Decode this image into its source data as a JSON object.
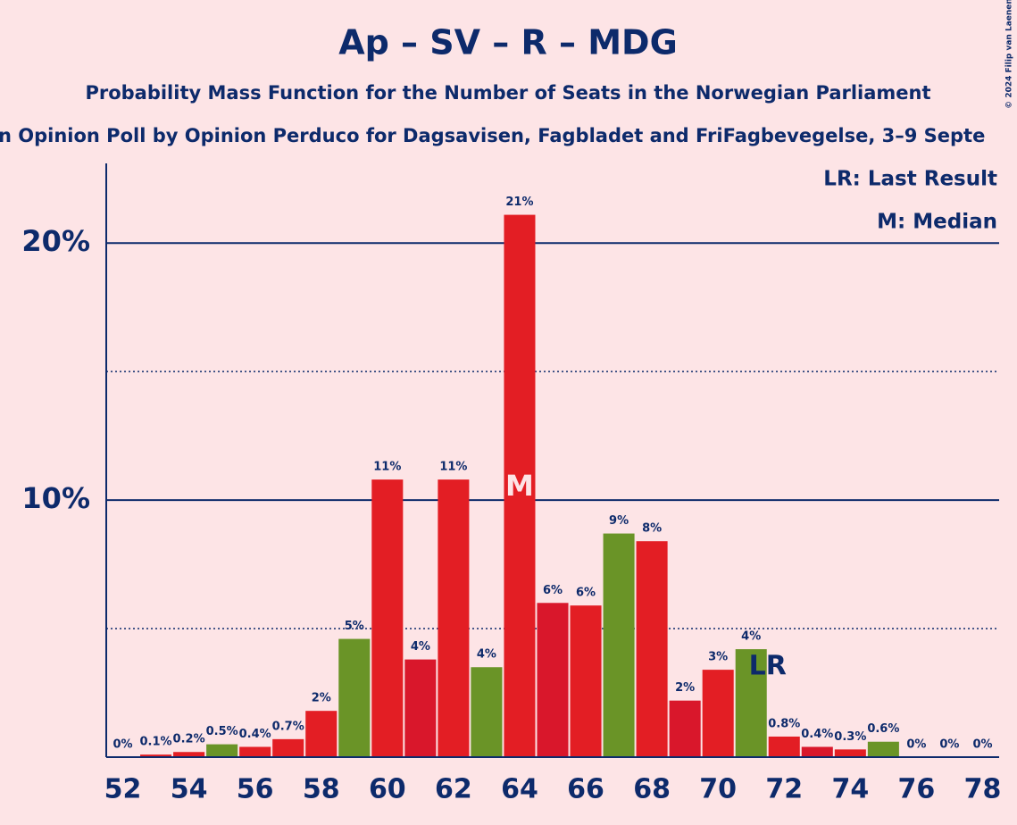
{
  "chart_data": {
    "type": "bar",
    "title": "Ap – SV – R – MDG",
    "subtitle": "Probability Mass Function for the Number of Seats in the Norwegian Parliament",
    "subtitle2": "n Opinion Poll by Opinion Perduco for Dagsavisen, Fagbladet and FriFagbevegelse, 3–9 Septe",
    "credit": "© 2024 Filip van Laenen",
    "x": [
      52,
      53,
      54,
      55,
      56,
      57,
      58,
      59,
      60,
      61,
      62,
      63,
      64,
      65,
      66,
      67,
      68,
      69,
      70,
      71,
      72,
      73,
      74,
      75,
      76,
      77,
      78
    ],
    "values": [
      0,
      0.1,
      0.2,
      0.5,
      0.4,
      0.7,
      1.8,
      4.6,
      10.8,
      3.8,
      10.8,
      3.5,
      21.1,
      6.0,
      5.9,
      8.7,
      8.4,
      2.2,
      3.4,
      4.2,
      0.8,
      0.4,
      0.3,
      0.6,
      0,
      0,
      0
    ],
    "value_labels": [
      "0%",
      "0.1%",
      "0.2%",
      "0.5%",
      "0.4%",
      "0.7%",
      "2%",
      "5%",
      "11%",
      "4%",
      "11%",
      "4%",
      "21%",
      "6%",
      "6%",
      "9%",
      "8%",
      "2%",
      "3%",
      "4%",
      "0.8%",
      "0.4%",
      "0.3%",
      "0.6%",
      "0%",
      "0%",
      "0%"
    ],
    "colors": [
      "#e31e24",
      "#e31e24",
      "#e31e24",
      "#6a9427",
      "#e31e24",
      "#e31e24",
      "#e31e24",
      "#6a9427",
      "#e31e24",
      "#d9172b",
      "#e31e24",
      "#6a9427",
      "#e31e24",
      "#d9172b",
      "#e31e24",
      "#6a9427",
      "#e31e24",
      "#d9172b",
      "#e31e24",
      "#6a9427",
      "#e31e24",
      "#d9172b",
      "#e31e24",
      "#6a9427",
      "#e31e24",
      "#e31e24",
      "#e31e24"
    ],
    "xlim": [
      51.5,
      78.5
    ],
    "xticks": [
      52,
      54,
      56,
      58,
      60,
      62,
      64,
      66,
      68,
      70,
      72,
      74,
      76,
      78
    ],
    "ylim": [
      0,
      23.1
    ],
    "yticks": [
      {
        "value": 10,
        "label": "10%"
      },
      {
        "value": 20,
        "label": "20%"
      }
    ],
    "minor_yticks": [
      5,
      15
    ],
    "grid": true,
    "median": 64,
    "median_label": "M",
    "last_result": 72,
    "last_result_label": "LR",
    "legend": [
      "LR: Last Result",
      "M: Median"
    ]
  }
}
